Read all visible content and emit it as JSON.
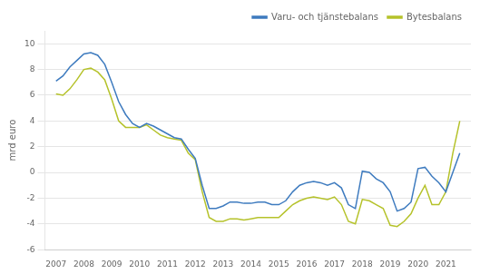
{
  "chart_data": {
    "type": "line",
    "ylabel": "mrd euro",
    "x": [
      2007.0,
      2007.25,
      2007.5,
      2007.75,
      2008.0,
      2008.25,
      2008.5,
      2008.75,
      2009.0,
      2009.25,
      2009.5,
      2009.75,
      2010.0,
      2010.25,
      2010.5,
      2010.75,
      2011.0,
      2011.25,
      2011.5,
      2011.75,
      2012.0,
      2012.25,
      2012.5,
      2012.75,
      2013.0,
      2013.25,
      2013.5,
      2013.75,
      2014.0,
      2014.25,
      2014.5,
      2014.75,
      2015.0,
      2015.25,
      2015.5,
      2015.75,
      2016.0,
      2016.25,
      2016.5,
      2016.75,
      2017.0,
      2017.25,
      2017.5,
      2017.75,
      2018.0,
      2018.25,
      2018.5,
      2018.75,
      2019.0,
      2019.25,
      2019.5,
      2019.75,
      2020.0,
      2020.25,
      2020.5,
      2020.75,
      2021.0,
      2021.25,
      2021.5
    ],
    "series": [
      {
        "name": "Varu- och tjänstebalans",
        "color": "#3e7bbf",
        "values": [
          7.1,
          7.5,
          8.2,
          8.7,
          9.2,
          9.3,
          9.1,
          8.4,
          7.0,
          5.5,
          4.5,
          3.8,
          3.5,
          3.8,
          3.6,
          3.3,
          3.0,
          2.7,
          2.6,
          1.8,
          1.1,
          -1.0,
          -2.8,
          -2.8,
          -2.6,
          -2.3,
          -2.3,
          -2.4,
          -2.4,
          -2.3,
          -2.3,
          -2.5,
          -2.5,
          -2.2,
          -1.5,
          -1.0,
          -0.8,
          -0.7,
          -0.8,
          -1.0,
          -0.8,
          -1.2,
          -2.5,
          -2.8,
          0.1,
          0.0,
          -0.5,
          -0.8,
          -1.5,
          -3.0,
          -2.8,
          -2.3,
          0.3,
          0.4,
          -0.3,
          -0.8,
          -1.5,
          0.0,
          1.5
        ]
      },
      {
        "name": "Bytesbalans",
        "color": "#b5c22a",
        "values": [
          6.1,
          6.0,
          6.5,
          7.2,
          8.0,
          8.1,
          7.8,
          7.2,
          5.7,
          4.0,
          3.5,
          3.5,
          3.5,
          3.7,
          3.3,
          2.9,
          2.7,
          2.6,
          2.5,
          1.5,
          1.0,
          -1.5,
          -3.5,
          -3.8,
          -3.8,
          -3.6,
          -3.6,
          -3.7,
          -3.6,
          -3.5,
          -3.5,
          -3.5,
          -3.5,
          -3.0,
          -2.5,
          -2.2,
          -2.0,
          -1.9,
          -2.0,
          -2.1,
          -1.9,
          -2.5,
          -3.8,
          -4.0,
          -2.1,
          -2.2,
          -2.5,
          -2.8,
          -4.1,
          -4.2,
          -3.8,
          -3.2,
          -2.0,
          -1.0,
          -2.5,
          -2.5,
          -1.5,
          1.5,
          4.0
        ]
      }
    ],
    "xlim": [
      2006.6,
      2021.9
    ],
    "xticks": [
      2007,
      2008,
      2009,
      2010,
      2011,
      2012,
      2013,
      2014,
      2015,
      2016,
      2017,
      2018,
      2019,
      2020,
      2021
    ],
    "ylim": [
      -6,
      11
    ],
    "yticks": [
      -6,
      -4,
      -2,
      0,
      2,
      4,
      6,
      8,
      10
    ],
    "grid": "y",
    "legend": "upper right"
  }
}
